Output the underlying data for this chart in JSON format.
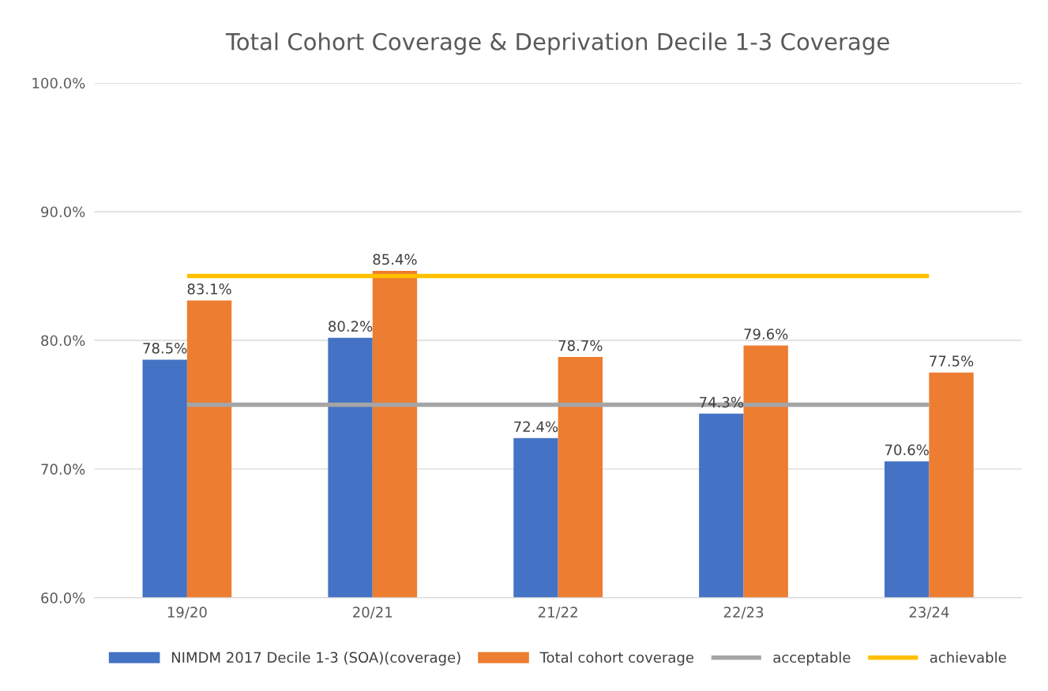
{
  "chart_data": {
    "type": "bar",
    "title": "Total Cohort Coverage & Deprivation Decile 1-3 Coverage",
    "categories": [
      "19/20",
      "20/21",
      "21/22",
      "22/23",
      "23/24"
    ],
    "series": [
      {
        "name": "NIMDM 2017 Decile 1-3 (SOA)(coverage)",
        "color": "#4472c4",
        "values": [
          78.5,
          80.2,
          72.4,
          74.3,
          70.6
        ],
        "value_labels": [
          "78.5%",
          "80.2%",
          "72.4%",
          "74.3%",
          "70.6%"
        ]
      },
      {
        "name": "Total cohort coverage",
        "color": "#ed7d31",
        "values": [
          83.1,
          85.4,
          78.7,
          79.6,
          77.5
        ],
        "value_labels": [
          "83.1%",
          "85.4%",
          "78.7%",
          "79.6%",
          "77.5%"
        ]
      },
      {
        "name": "acceptable",
        "type": "line",
        "color": "#a5a5a5",
        "values": [
          75,
          75,
          75,
          75,
          75
        ]
      },
      {
        "name": "achievable",
        "type": "line",
        "color": "#ffc000",
        "values": [
          85,
          85,
          85,
          85,
          85
        ]
      }
    ],
    "ylim": [
      60,
      100
    ],
    "yticks": [
      {
        "value": 60,
        "label": "60.0%"
      },
      {
        "value": 70,
        "label": "70.0%"
      },
      {
        "value": 80,
        "label": "80.0%"
      },
      {
        "value": 90,
        "label": "90.0%"
      },
      {
        "value": 100,
        "label": "100.0%"
      }
    ],
    "grid": "y",
    "legend": "bottom",
    "marker": "none",
    "line_style": "solid"
  }
}
